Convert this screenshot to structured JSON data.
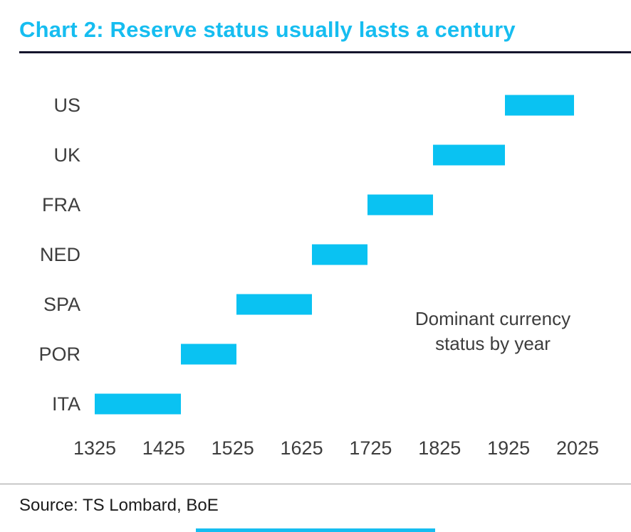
{
  "title": "Chart 2: Reserve status usually lasts a century",
  "annotation": {
    "line1": "Dominant currency",
    "line2": "status by year"
  },
  "source": "Source: TS Lombard, BoE",
  "colors": {
    "accent": "#16bdf0",
    "bar": "#0ac2f2",
    "title_rule": "#14142c",
    "text": "#3d3d3d"
  },
  "chart_data": {
    "type": "bar",
    "orientation": "horizontal-range",
    "title": "Chart 2: Reserve status usually lasts a century",
    "annotation": "Dominant currency status by year",
    "xlim": [
      1325,
      2025
    ],
    "ticks": [
      1325,
      1425,
      1525,
      1625,
      1725,
      1825,
      1925,
      2025
    ],
    "categories": [
      "US",
      "UK",
      "FRA",
      "NED",
      "SPA",
      "POR",
      "ITA"
    ],
    "series": [
      {
        "label": "US",
        "start": 1920,
        "end": 2020
      },
      {
        "label": "UK",
        "start": 1815,
        "end": 1920
      },
      {
        "label": "FRA",
        "start": 1720,
        "end": 1815
      },
      {
        "label": "NED",
        "start": 1640,
        "end": 1720
      },
      {
        "label": "SPA",
        "start": 1530,
        "end": 1640
      },
      {
        "label": "POR",
        "start": 1450,
        "end": 1530
      },
      {
        "label": "ITA",
        "start": 1325,
        "end": 1450
      }
    ],
    "legend": false,
    "grid": false
  }
}
